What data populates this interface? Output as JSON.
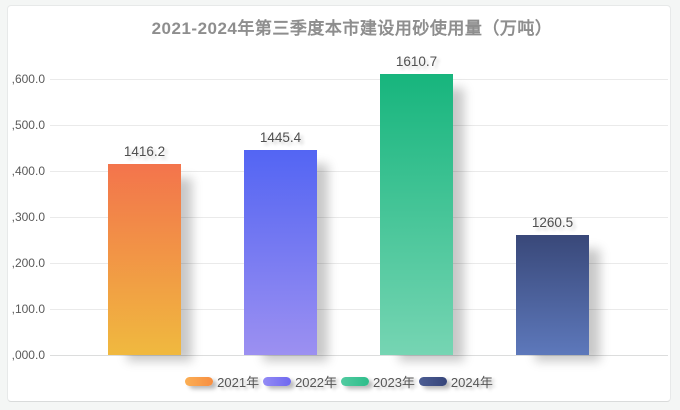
{
  "page": {
    "background_color": "#f4f6f5",
    "card_background": "#ffffff",
    "card_border_color": "#e7e9e9",
    "gridline_color": "#eaeaea",
    "title_color": "#8e8e8e"
  },
  "chart_data": {
    "type": "bar",
    "title": "2021-2024年第三季度本市建设用砂使用量（万吨）",
    "categories": [
      "2021年",
      "2022年",
      "2023年",
      "2024年"
    ],
    "values": [
      1416.2,
      1445.4,
      1610.7,
      1260.5
    ],
    "value_labels": [
      "1416.2",
      "1445.4",
      "1610.7",
      "1260.5"
    ],
    "xlabel": "",
    "ylabel": "",
    "ylim": [
      1000,
      1600
    ],
    "ytick_interval": 100,
    "ytick_labels_visible": [
      ",600.0",
      ",500.0",
      ",400.0",
      ",300.0",
      ",200.0",
      ",100.0",
      ",000.0"
    ],
    "grid": true,
    "legend_position": "bottom",
    "series_colors": [
      {
        "name": "2021年",
        "gradient_top": "#f3744c",
        "gradient_bottom": "#f0b93f",
        "legend_left": "#fbaf55",
        "legend_right": "#f78e41"
      },
      {
        "name": "2022年",
        "gradient_top": "#5365f3",
        "gradient_bottom": "#9c90f1",
        "legend_left": "#938bf5",
        "legend_right": "#6f68ef"
      },
      {
        "name": "2023年",
        "gradient_top": "#17b57d",
        "gradient_bottom": "#76d5b3",
        "legend_left": "#52cba1",
        "legend_right": "#2ebd8a"
      },
      {
        "name": "2024年",
        "gradient_top": "#394879",
        "gradient_bottom": "#5d78bb",
        "legend_left": "#4c5d93",
        "legend_right": "#36457a"
      }
    ]
  }
}
